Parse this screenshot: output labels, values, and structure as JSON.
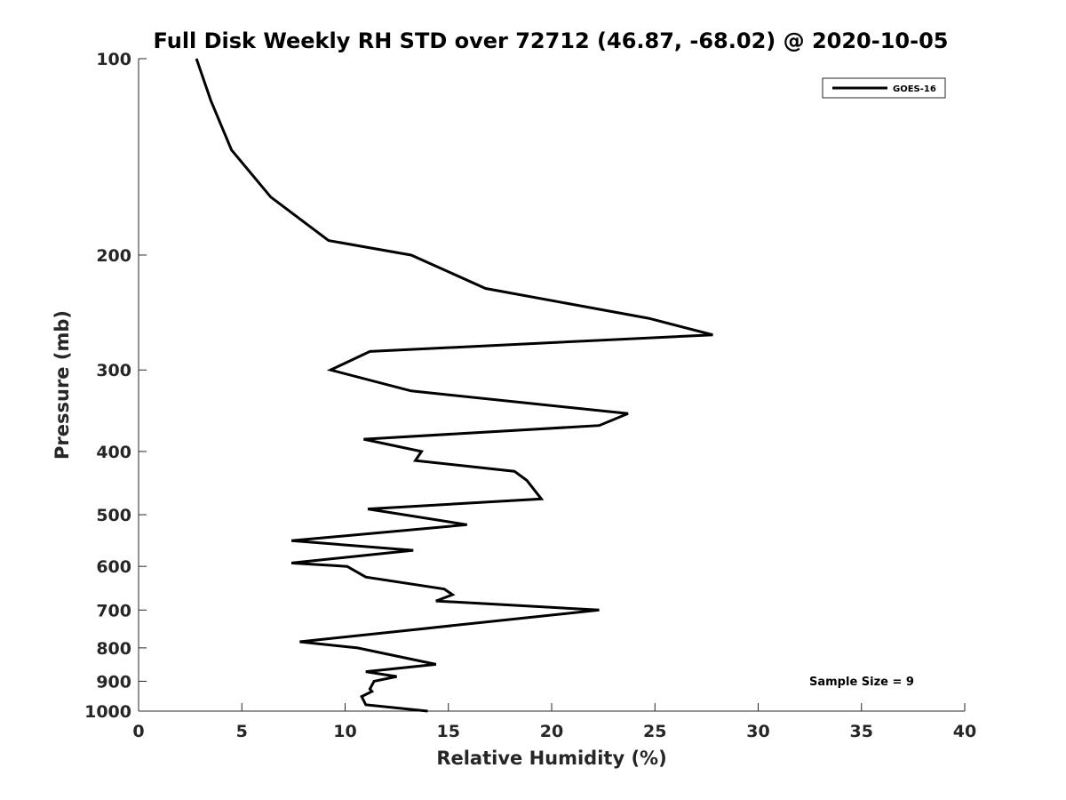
{
  "chart_data": {
    "type": "line",
    "title": "Full Disk Weekly RH STD over 72712 (46.87, -68.02) @ 2020-10-05",
    "xlabel": "Relative Humidity (%)",
    "ylabel": "Pressure (mb)",
    "xlim": [
      0,
      40
    ],
    "ylim": [
      100,
      1000
    ],
    "y_scale": "log",
    "y_reversed": true,
    "x_ticks": [
      0,
      5,
      10,
      15,
      20,
      25,
      30,
      35,
      40
    ],
    "y_ticks": [
      100,
      200,
      300,
      400,
      500,
      600,
      700,
      800,
      900,
      1000
    ],
    "grid": false,
    "legend_position": "top-right",
    "series": [
      {
        "name": "GOES-16",
        "color": "#000000",
        "points": [
          [
            2.8,
            100
          ],
          [
            3.5,
            116
          ],
          [
            4.5,
            138
          ],
          [
            6.4,
            163
          ],
          [
            9.2,
            190
          ],
          [
            13.2,
            200
          ],
          [
            16.8,
            225
          ],
          [
            24.7,
            250
          ],
          [
            27.8,
            265
          ],
          [
            11.2,
            281
          ],
          [
            9.3,
            300
          ],
          [
            13.2,
            323
          ],
          [
            23.7,
            350
          ],
          [
            22.3,
            365
          ],
          [
            10.9,
            383
          ],
          [
            13.7,
            400
          ],
          [
            13.4,
            413
          ],
          [
            18.2,
            429
          ],
          [
            18.8,
            443
          ],
          [
            19.5,
            473
          ],
          [
            11.1,
            490
          ],
          [
            15.9,
            518
          ],
          [
            7.4,
            548
          ],
          [
            13.3,
            567
          ],
          [
            7.4,
            593
          ],
          [
            10.1,
            600
          ],
          [
            11.0,
            623
          ],
          [
            14.8,
            650
          ],
          [
            15.2,
            663
          ],
          [
            14.4,
            678
          ],
          [
            22.3,
            700
          ],
          [
            13.2,
            751
          ],
          [
            7.8,
            783
          ],
          [
            10.6,
            800
          ],
          [
            14.4,
            848
          ],
          [
            11.0,
            870
          ],
          [
            12.5,
            885
          ],
          [
            11.4,
            900
          ],
          [
            11.2,
            925
          ],
          [
            11.3,
            933
          ],
          [
            10.8,
            950
          ],
          [
            11.0,
            978
          ],
          [
            14.0,
            1000
          ]
        ]
      }
    ],
    "annotations": [
      "Sample Size = 9"
    ]
  }
}
